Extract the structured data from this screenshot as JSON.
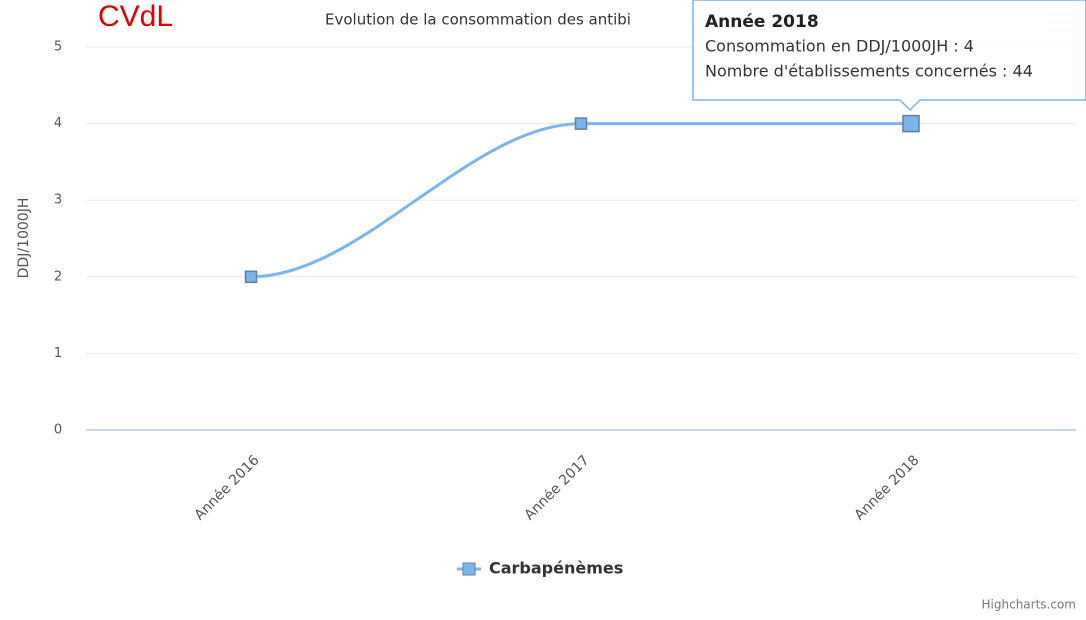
{
  "chart_data": {
    "type": "spline",
    "title": "Evolution de la consommation des antibi",
    "annotation": "CVdL",
    "y_axis_label": "DDJ/1000JH",
    "categories": [
      "Année 2016",
      "Année 2017",
      "Année 2018"
    ],
    "series": [
      {
        "name": "Carbapénèmes",
        "color": "#7cb5ec",
        "values": [
          2,
          4,
          4
        ]
      }
    ],
    "ylim": [
      0,
      5
    ],
    "yticks": [
      0,
      1,
      2,
      3,
      4,
      5
    ],
    "grid": true,
    "tooltip": {
      "title": "Année 2018",
      "lines": [
        "Consommation en DDJ/1000JH : 4",
        "Nombre d'établissements concernés : 44"
      ]
    },
    "credits": "Highcharts.com"
  }
}
